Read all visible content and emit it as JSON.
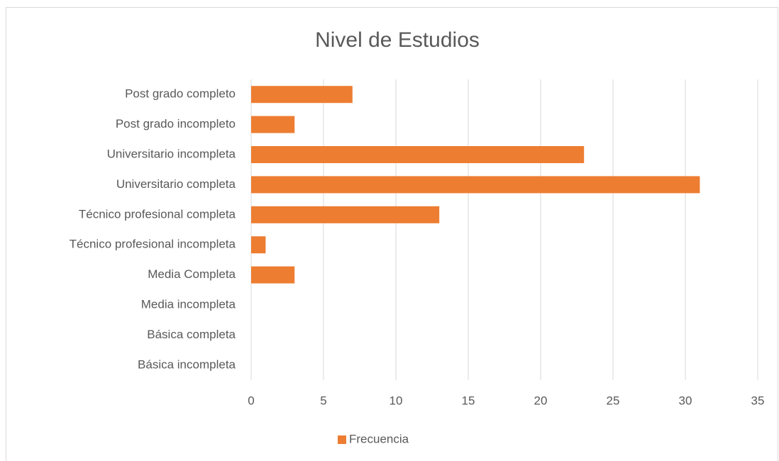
{
  "chart_data": {
    "type": "bar",
    "orientation": "horizontal",
    "title": "Nivel de Estudios",
    "categories": [
      "Post grado completo",
      "Post grado incompleto",
      "Universitario incompleta",
      "Universitario completa",
      "Técnico profesional completa",
      "Técnico profesional incompleta",
      "Media Completa",
      "Media incompleta",
      "Básica completa",
      "Básica incompleta"
    ],
    "series": [
      {
        "name": "Frecuencia",
        "color": "#ed7d31",
        "values": [
          7,
          3,
          23,
          31,
          13,
          1,
          3,
          0,
          0,
          0
        ]
      }
    ],
    "xlim": [
      0,
      35
    ],
    "xticks": [
      0,
      5,
      10,
      15,
      20,
      25,
      30,
      35
    ],
    "grid": true,
    "legend": "bottom"
  }
}
